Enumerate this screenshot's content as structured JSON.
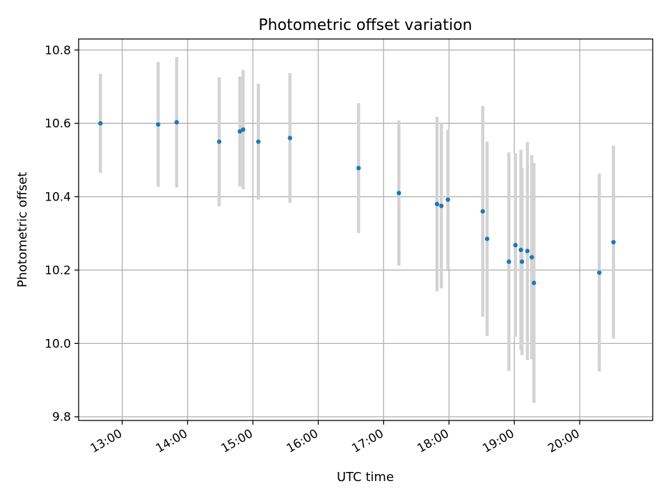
{
  "chart_data": {
    "type": "scatter",
    "title": "Photometric offset variation",
    "xlabel": "UTC time",
    "ylabel": "Photometric offset",
    "x_tick_labels": [
      "13:00",
      "14:00",
      "15:00",
      "16:00",
      "17:00",
      "18:00",
      "19:00",
      "20:00"
    ],
    "y_tick_labels": [
      "9.8",
      "10.0",
      "10.2",
      "10.4",
      "10.6",
      "10.8"
    ],
    "x_ticks": [
      "13:00",
      "14:00",
      "15:00",
      "16:00",
      "17:00",
      "18:00",
      "19:00",
      "20:00"
    ],
    "y_ticks": [
      9.8,
      10.0,
      10.2,
      10.4,
      10.6,
      10.8
    ],
    "xlim": [
      "12:20",
      "21:07"
    ],
    "ylim": [
      9.79,
      10.83
    ],
    "grid": true,
    "marker_color": "#1f77b4",
    "errorbar_color": "#d3d3d3",
    "series": [
      {
        "points": [
          {
            "x": "12:40",
            "y": 10.6,
            "yerr": 0.135
          },
          {
            "x": "13:33",
            "y": 10.597,
            "yerr": 0.17
          },
          {
            "x": "13:50",
            "y": 10.603,
            "yerr": 0.178
          },
          {
            "x": "14:29",
            "y": 10.55,
            "yerr": 0.176
          },
          {
            "x": "14:48",
            "y": 10.578,
            "yerr": 0.15
          },
          {
            "x": "14:51",
            "y": 10.583,
            "yerr": 0.163
          },
          {
            "x": "15:05",
            "y": 10.55,
            "yerr": 0.158
          },
          {
            "x": "15:34",
            "y": 10.56,
            "yerr": 0.177
          },
          {
            "x": "16:37",
            "y": 10.478,
            "yerr": 0.177
          },
          {
            "x": "17:14",
            "y": 10.41,
            "yerr": 0.198
          },
          {
            "x": "17:49",
            "y": 10.38,
            "yerr": 0.238
          },
          {
            "x": "17:53",
            "y": 10.375,
            "yerr": 0.225
          },
          {
            "x": "17:59",
            "y": 10.392,
            "yerr": 0.19
          },
          {
            "x": "18:31",
            "y": 10.36,
            "yerr": 0.287
          },
          {
            "x": "18:35",
            "y": 10.285,
            "yerr": 0.265
          },
          {
            "x": "18:55",
            "y": 10.223,
            "yerr": 0.298
          },
          {
            "x": "19:01",
            "y": 10.268,
            "yerr": 0.25
          },
          {
            "x": "19:06",
            "y": 10.255,
            "yerr": 0.273
          },
          {
            "x": "19:07",
            "y": 10.223,
            "yerr": 0.255
          },
          {
            "x": "19:12",
            "y": 10.252,
            "yerr": 0.297
          },
          {
            "x": "19:16",
            "y": 10.235,
            "yerr": 0.278
          },
          {
            "x": "19:18",
            "y": 10.165,
            "yerr": 0.327
          },
          {
            "x": "20:18",
            "y": 10.193,
            "yerr": 0.27
          },
          {
            "x": "20:31",
            "y": 10.276,
            "yerr": 0.263
          }
        ]
      }
    ]
  }
}
